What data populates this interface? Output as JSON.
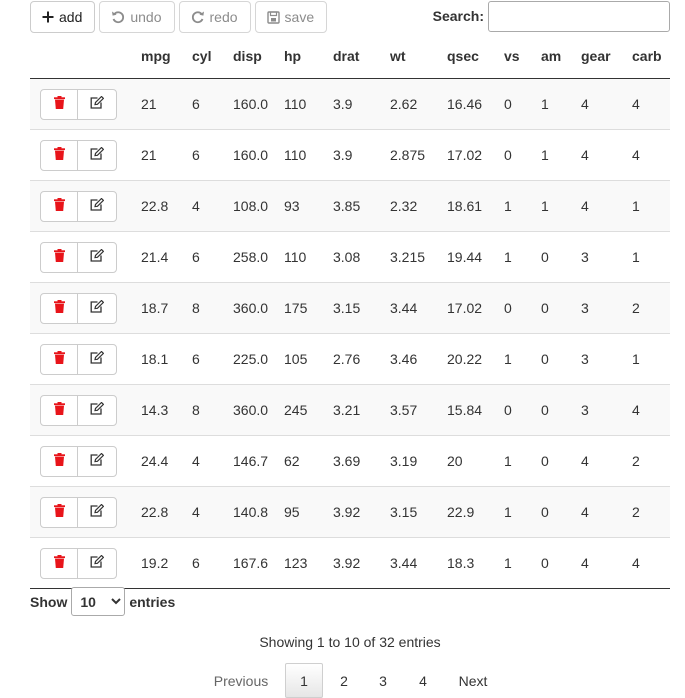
{
  "toolbar": {
    "add_label": "add",
    "undo_label": "undo",
    "redo_label": "redo",
    "save_label": "save"
  },
  "search": {
    "label": "Search:",
    "value": ""
  },
  "columns": [
    "mpg",
    "cyl",
    "disp",
    "hp",
    "drat",
    "wt",
    "qsec",
    "vs",
    "am",
    "gear",
    "carb"
  ],
  "rows": [
    [
      "21",
      "6",
      "160.0",
      "110",
      "3.9",
      "2.62",
      "16.46",
      "0",
      "1",
      "4",
      "4"
    ],
    [
      "21",
      "6",
      "160.0",
      "110",
      "3.9",
      "2.875",
      "17.02",
      "0",
      "1",
      "4",
      "4"
    ],
    [
      "22.8",
      "4",
      "108.0",
      "93",
      "3.85",
      "2.32",
      "18.61",
      "1",
      "1",
      "4",
      "1"
    ],
    [
      "21.4",
      "6",
      "258.0",
      "110",
      "3.08",
      "3.215",
      "19.44",
      "1",
      "0",
      "3",
      "1"
    ],
    [
      "18.7",
      "8",
      "360.0",
      "175",
      "3.15",
      "3.44",
      "17.02",
      "0",
      "0",
      "3",
      "2"
    ],
    [
      "18.1",
      "6",
      "225.0",
      "105",
      "2.76",
      "3.46",
      "20.22",
      "1",
      "0",
      "3",
      "1"
    ],
    [
      "14.3",
      "8",
      "360.0",
      "245",
      "3.21",
      "3.57",
      "15.84",
      "0",
      "0",
      "3",
      "4"
    ],
    [
      "24.4",
      "4",
      "146.7",
      "62",
      "3.69",
      "3.19",
      "20",
      "1",
      "0",
      "4",
      "2"
    ],
    [
      "22.8",
      "4",
      "140.8",
      "95",
      "3.92",
      "3.15",
      "22.9",
      "1",
      "0",
      "4",
      "2"
    ],
    [
      "19.2",
      "6",
      "167.6",
      "123",
      "3.92",
      "3.44",
      "18.3",
      "1",
      "0",
      "4",
      "4"
    ]
  ],
  "length": {
    "show_label": "Show",
    "selected": "10",
    "entries_label": "entries"
  },
  "info": "Showing 1 to 10 of 32 entries",
  "pagination": {
    "previous": "Previous",
    "pages": [
      "1",
      "2",
      "3",
      "4"
    ],
    "current": "1",
    "next": "Next"
  },
  "colors": {
    "delete_icon": "#e8141a",
    "header_border": "#333333",
    "row_stripe": "#f9f9f9"
  },
  "icons": {
    "add": "plus-icon",
    "undo": "undo-icon",
    "redo": "redo-icon",
    "save": "save-icon",
    "delete": "trash-icon",
    "edit": "edit-icon"
  }
}
